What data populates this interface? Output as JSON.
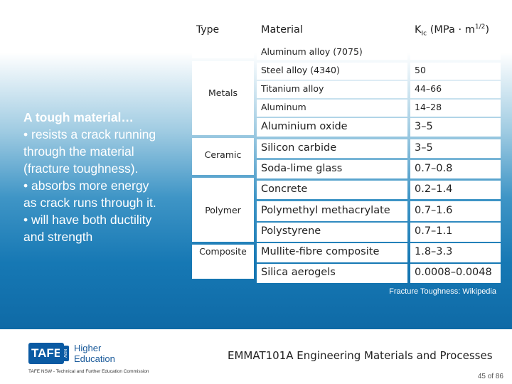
{
  "left_text": {
    "heading": "A tough material…",
    "lines": [
      "• resists a crack running",
      "through the material",
      "(fracture toughness).",
      "• absorbs more energy",
      "as crack runs through it.",
      "• will have both ductility",
      "and strength"
    ]
  },
  "table": {
    "type_header": "Type",
    "material_header": "Material",
    "value_header_main": "K",
    "value_header_sub": "Ic",
    "value_header_unit": " (MPa · m",
    "value_header_sup": "1/2",
    "value_header_end": ")",
    "types": [
      "Metals",
      "Ceramic",
      "Polymer",
      "Composite"
    ],
    "rows": [
      {
        "material": "Aluminum alloy (7075)",
        "value": ""
      },
      {
        "material": "Steel alloy (4340)",
        "value": "50"
      },
      {
        "material": "Titanium alloy",
        "value": "44–66"
      },
      {
        "material": "Aluminum",
        "value": "14–28"
      },
      {
        "material": "Aluminium oxide",
        "value": "3–5"
      },
      {
        "material": "Silicon carbide",
        "value": "3–5"
      },
      {
        "material": "Soda-lime glass",
        "value": "0.7–0.8"
      },
      {
        "material": "Concrete",
        "value": "0.2–1.4"
      },
      {
        "material": "Polymethyl methacrylate",
        "value": "0.7–1.6"
      },
      {
        "material": "Polystyrene",
        "value": "0.7–1.1"
      },
      {
        "material": "Mullite-fibre composite",
        "value": "1.8–3.3"
      },
      {
        "material": "Silica aerogels",
        "value": "0.0008–0.0048"
      }
    ]
  },
  "caption": "Fracture Toughness: Wikipedia",
  "footer": {
    "course": "EMMAT101A Engineering Materials and Processes",
    "page": "45 of 86",
    "logo_text": "TAFE",
    "logo_badge": "NSW",
    "logo_sub_1": "Higher",
    "logo_sub_2": "Education",
    "logo_footer": "TAFE NSW - Technical and Further Education Commission"
  }
}
